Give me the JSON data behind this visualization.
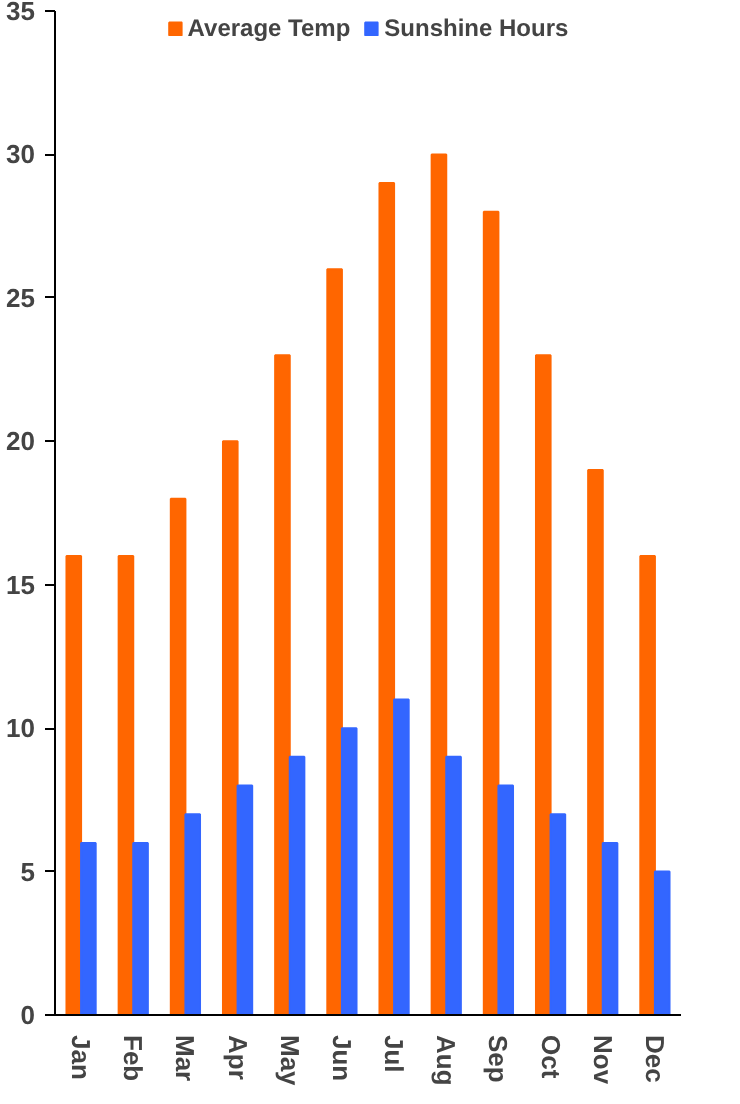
{
  "chart_data": {
    "type": "bar",
    "categories": [
      "Jan",
      "Feb",
      "Mar",
      "Apr",
      "May",
      "Jun",
      "Jul",
      "Aug",
      "Sep",
      "Oct",
      "Nov",
      "Dec"
    ],
    "series": [
      {
        "name": "Average Temp",
        "color": "#ff6600",
        "values": [
          16,
          16,
          18,
          20,
          23,
          26,
          29,
          30,
          28,
          23,
          19,
          16
        ]
      },
      {
        "name": "Sunshine Hours",
        "color": "#3366ff",
        "values": [
          6,
          6,
          7,
          8,
          9,
          10,
          11,
          9,
          8,
          7,
          6,
          5
        ]
      }
    ],
    "ylim": [
      0,
      35
    ],
    "yticks": [
      0,
      5,
      10,
      15,
      20,
      25,
      30,
      35
    ],
    "grid": false,
    "legend": "top"
  }
}
